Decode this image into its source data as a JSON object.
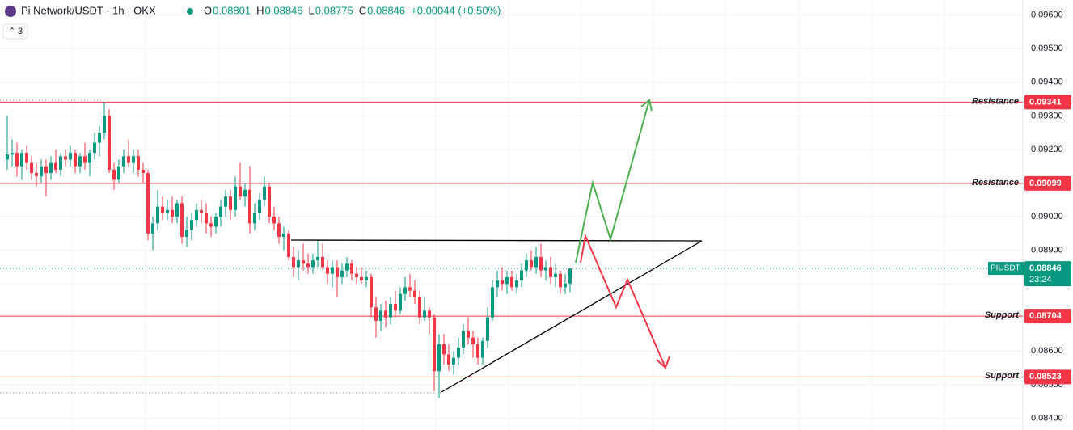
{
  "chart_data": {
    "type": "candlestick",
    "title": "Pi Network/USDT · 1h · OKX",
    "indicator_count": "3",
    "ohlc_labels": [
      "O",
      "H",
      "L",
      "C"
    ],
    "change_label": "+0.00044 (+0.50%)",
    "symbol_label": "PIUSDT",
    "countdown": "23:24",
    "up_color": "#089981",
    "down_color": "#f23645",
    "grid": true,
    "ylim": [
      0.08365,
      0.09645
    ],
    "yticks": [
      {
        "value": 0.096,
        "label": "0.09600"
      },
      {
        "value": 0.095,
        "label": "0.09500"
      },
      {
        "value": 0.094,
        "label": "0.09400"
      },
      {
        "value": 0.093,
        "label": "0.09300"
      },
      {
        "value": 0.092,
        "label": "0.09200"
      },
      {
        "value": 0.091,
        "label": "0.09100"
      },
      {
        "value": 0.09,
        "label": "0.09000"
      },
      {
        "value": 0.089,
        "label": "0.08900"
      },
      {
        "value": 0.088,
        "label": "0.08800"
      },
      {
        "value": 0.087,
        "label": "0.08700"
      },
      {
        "value": 0.086,
        "label": "0.08600"
      },
      {
        "value": 0.085,
        "label": "0.08500"
      },
      {
        "value": 0.084,
        "label": "0.08400"
      }
    ],
    "levels": [
      {
        "label": "Resistance",
        "value": 0.09341
      },
      {
        "label": "Resistance",
        "value": 0.09099
      },
      {
        "label": "Support",
        "value": 0.08704
      },
      {
        "label": "Support",
        "value": 0.08523
      }
    ],
    "candles": [
      [
        0.0917,
        0.093,
        0.0914,
        0.09185
      ],
      [
        0.09185,
        0.0923,
        0.0915,
        0.0919
      ],
      [
        0.0919,
        0.0922,
        0.0912,
        0.0915
      ],
      [
        0.0915,
        0.092,
        0.0911,
        0.0919
      ],
      [
        0.0919,
        0.0921,
        0.0914,
        0.0916
      ],
      [
        0.0916,
        0.0918,
        0.0911,
        0.0913
      ],
      [
        0.0913,
        0.0916,
        0.0909,
        0.0912
      ],
      [
        0.0912,
        0.0917,
        0.091,
        0.0915
      ],
      [
        0.0915,
        0.0917,
        0.0906,
        0.0913
      ],
      [
        0.0913,
        0.0918,
        0.0911,
        0.0916
      ],
      [
        0.0916,
        0.092,
        0.0913,
        0.0914
      ],
      [
        0.0914,
        0.0919,
        0.0912,
        0.0918
      ],
      [
        0.0918,
        0.092,
        0.0915,
        0.0917
      ],
      [
        0.0917,
        0.0921,
        0.0915,
        0.0919
      ],
      [
        0.0919,
        0.092,
        0.0913,
        0.0915
      ],
      [
        0.0915,
        0.0919,
        0.0913,
        0.0918
      ],
      [
        0.0918,
        0.0922,
        0.0914,
        0.0916
      ],
      [
        0.0916,
        0.092,
        0.0912,
        0.0919
      ],
      [
        0.0919,
        0.0925,
        0.0917,
        0.0922
      ],
      [
        0.0922,
        0.0927,
        0.0918,
        0.0925
      ],
      [
        0.0925,
        0.09341,
        0.0923,
        0.093
      ],
      [
        0.093,
        0.0932,
        0.0913,
        0.0914
      ],
      [
        0.0914,
        0.0916,
        0.0908,
        0.0911
      ],
      [
        0.0911,
        0.0917,
        0.091,
        0.0915
      ],
      [
        0.0915,
        0.092,
        0.0913,
        0.0918
      ],
      [
        0.0918,
        0.0923,
        0.0915,
        0.0916
      ],
      [
        0.0916,
        0.092,
        0.0913,
        0.0918
      ],
      [
        0.0918,
        0.092,
        0.0912,
        0.0914
      ],
      [
        0.0914,
        0.0916,
        0.091,
        0.0913
      ],
      [
        0.0913,
        0.0914,
        0.0893,
        0.0895
      ],
      [
        0.0895,
        0.09,
        0.089,
        0.0898
      ],
      [
        0.0898,
        0.0908,
        0.0896,
        0.0903
      ],
      [
        0.0903,
        0.0906,
        0.0899,
        0.0901
      ],
      [
        0.0901,
        0.0905,
        0.0899,
        0.0902
      ],
      [
        0.0902,
        0.0906,
        0.0898,
        0.09
      ],
      [
        0.09,
        0.0905,
        0.0898,
        0.0904
      ],
      [
        0.0904,
        0.0906,
        0.0892,
        0.0894
      ],
      [
        0.0894,
        0.09,
        0.0891,
        0.0896
      ],
      [
        0.0896,
        0.0901,
        0.0893,
        0.0899
      ],
      [
        0.0899,
        0.0904,
        0.0897,
        0.0902
      ],
      [
        0.0902,
        0.0905,
        0.0898,
        0.0901
      ],
      [
        0.0901,
        0.0904,
        0.0895,
        0.0898
      ],
      [
        0.0898,
        0.09,
        0.0894,
        0.0897
      ],
      [
        0.0897,
        0.0901,
        0.0895,
        0.09
      ],
      [
        0.09,
        0.0905,
        0.0897,
        0.0903
      ],
      [
        0.0903,
        0.0908,
        0.09,
        0.0906
      ],
      [
        0.0906,
        0.0908,
        0.0899,
        0.0902
      ],
      [
        0.0902,
        0.0912,
        0.09,
        0.0909
      ],
      [
        0.0909,
        0.0916,
        0.0905,
        0.0906
      ],
      [
        0.0906,
        0.091,
        0.0903,
        0.0908
      ],
      [
        0.0908,
        0.0915,
        0.0895,
        0.0898
      ],
      [
        0.0898,
        0.0904,
        0.0896,
        0.0901
      ],
      [
        0.0901,
        0.0907,
        0.0899,
        0.0905
      ],
      [
        0.0905,
        0.0912,
        0.0903,
        0.0909
      ],
      [
        0.0909,
        0.091,
        0.0898,
        0.09
      ],
      [
        0.09,
        0.0903,
        0.0896,
        0.0898
      ],
      [
        0.0898,
        0.09,
        0.0892,
        0.0894
      ],
      [
        0.0894,
        0.0897,
        0.089,
        0.0895
      ],
      [
        0.0895,
        0.0896,
        0.0887,
        0.0888
      ],
      [
        0.0888,
        0.0891,
        0.0882,
        0.0885
      ],
      [
        0.0885,
        0.089,
        0.0881,
        0.0887
      ],
      [
        0.0887,
        0.0892,
        0.0884,
        0.0886
      ],
      [
        0.0886,
        0.0889,
        0.0883,
        0.0885
      ],
      [
        0.0885,
        0.0889,
        0.0883,
        0.0887
      ],
      [
        0.0887,
        0.0893,
        0.0885,
        0.0888
      ],
      [
        0.0888,
        0.0892,
        0.0884,
        0.0885
      ],
      [
        0.0885,
        0.0887,
        0.088,
        0.0883
      ],
      [
        0.0883,
        0.0887,
        0.0879,
        0.0885
      ],
      [
        0.0885,
        0.0887,
        0.0876,
        0.0882
      ],
      [
        0.0882,
        0.0886,
        0.088,
        0.0884
      ],
      [
        0.0884,
        0.0888,
        0.0882,
        0.0886
      ],
      [
        0.0886,
        0.0887,
        0.0881,
        0.0883
      ],
      [
        0.0883,
        0.0885,
        0.088,
        0.0882
      ],
      [
        0.0882,
        0.0885,
        0.088,
        0.0881
      ],
      [
        0.0881,
        0.0884,
        0.0879,
        0.0882
      ],
      [
        0.0882,
        0.0883,
        0.087,
        0.0873
      ],
      [
        0.0873,
        0.0876,
        0.0864,
        0.0869
      ],
      [
        0.0869,
        0.0874,
        0.0866,
        0.0872
      ],
      [
        0.0872,
        0.0875,
        0.0867,
        0.087
      ],
      [
        0.087,
        0.0876,
        0.0868,
        0.0874
      ],
      [
        0.0874,
        0.0878,
        0.087,
        0.0872
      ],
      [
        0.0872,
        0.0879,
        0.0871,
        0.0877
      ],
      [
        0.0877,
        0.0882,
        0.0875,
        0.0879
      ],
      [
        0.0879,
        0.0883,
        0.0876,
        0.0878
      ],
      [
        0.0878,
        0.0881,
        0.0874,
        0.0876
      ],
      [
        0.0876,
        0.0878,
        0.0868,
        0.087
      ],
      [
        0.087,
        0.0876,
        0.0869,
        0.0872
      ],
      [
        0.0872,
        0.0873,
        0.0865,
        0.087
      ],
      [
        0.087,
        0.0871,
        0.0848,
        0.0854
      ],
      [
        0.0854,
        0.0865,
        0.0846,
        0.0862
      ],
      [
        0.0862,
        0.0865,
        0.0856,
        0.0859
      ],
      [
        0.0859,
        0.0862,
        0.0854,
        0.0856
      ],
      [
        0.0856,
        0.086,
        0.0853,
        0.0858
      ],
      [
        0.0858,
        0.0864,
        0.0856,
        0.0861
      ],
      [
        0.0861,
        0.0868,
        0.0859,
        0.0866
      ],
      [
        0.0866,
        0.087,
        0.0862,
        0.0864
      ],
      [
        0.0864,
        0.0866,
        0.0858,
        0.0862
      ],
      [
        0.0862,
        0.0864,
        0.0856,
        0.0858
      ],
      [
        0.0858,
        0.0864,
        0.0856,
        0.0863
      ],
      [
        0.0863,
        0.0873,
        0.0861,
        0.087
      ],
      [
        0.087,
        0.0881,
        0.0869,
        0.0879
      ],
      [
        0.0879,
        0.0884,
        0.0876,
        0.0881
      ],
      [
        0.0881,
        0.0885,
        0.0878,
        0.088
      ],
      [
        0.088,
        0.0884,
        0.0877,
        0.0882
      ],
      [
        0.0882,
        0.0884,
        0.0878,
        0.0879
      ],
      [
        0.0879,
        0.0883,
        0.0877,
        0.0881
      ],
      [
        0.0881,
        0.0886,
        0.0879,
        0.0884
      ],
      [
        0.0884,
        0.0889,
        0.0882,
        0.0887
      ],
      [
        0.0887,
        0.089,
        0.0884,
        0.0885
      ],
      [
        0.0885,
        0.0891,
        0.0883,
        0.0888
      ],
      [
        0.0888,
        0.0892,
        0.0882,
        0.0884
      ],
      [
        0.0884,
        0.0887,
        0.0881,
        0.0885
      ],
      [
        0.0885,
        0.0888,
        0.088,
        0.0882
      ],
      [
        0.0882,
        0.0886,
        0.0879,
        0.0883
      ],
      [
        0.0883,
        0.0884,
        0.0877,
        0.0879
      ],
      [
        0.0879,
        0.0883,
        0.0877,
        0.08801
      ],
      [
        0.08801,
        0.08846,
        0.08775,
        0.08846
      ]
    ]
  }
}
